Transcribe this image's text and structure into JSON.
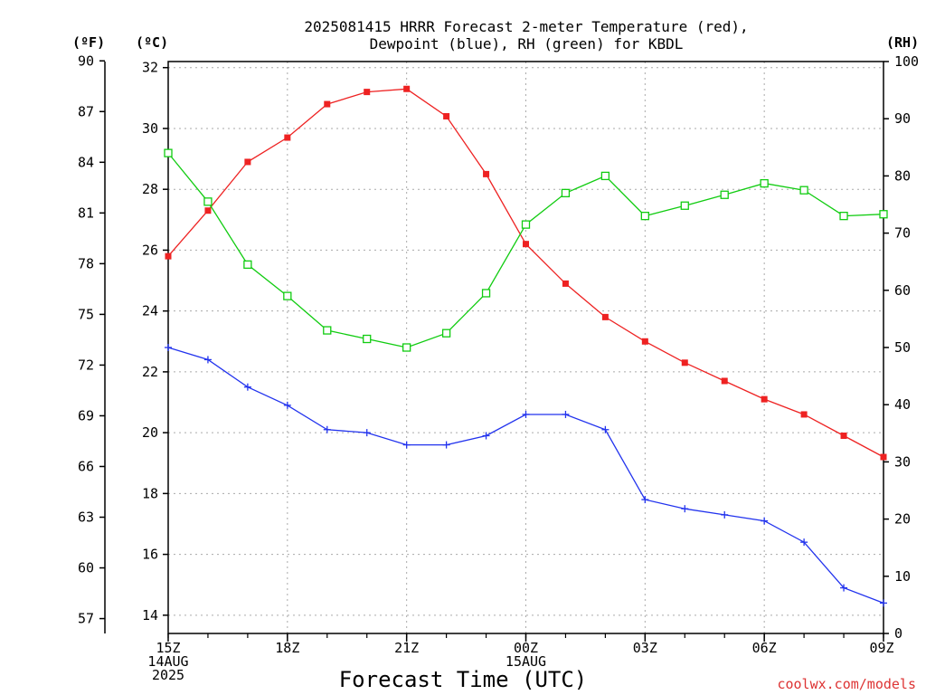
{
  "chart_data": {
    "type": "line",
    "title": [
      "2025081415 HRRR Forecast 2-meter Temperature (red),",
      "Dewpoint (blue), RH (green) for KBDL"
    ],
    "xlabel": "Forecast Time (UTC)",
    "credit": "coolwx.com/models",
    "colors": {
      "temperature": "#ee2222",
      "dewpoint": "#2233ee",
      "rh": "#11cc11",
      "grid": "#aaaaaa"
    },
    "x_hours_from_start": [
      0,
      1,
      2,
      3,
      4,
      5,
      6,
      7,
      8,
      9,
      10,
      11,
      12,
      13,
      14,
      15,
      16,
      17,
      18
    ],
    "x_tick_labels": [
      {
        "h": 0,
        "lines": [
          "15Z",
          "14AUG",
          "2025"
        ]
      },
      {
        "h": 3,
        "lines": [
          "18Z"
        ]
      },
      {
        "h": 6,
        "lines": [
          "21Z"
        ]
      },
      {
        "h": 9,
        "lines": [
          "00Z",
          "15AUG"
        ]
      },
      {
        "h": 12,
        "lines": [
          "03Z"
        ]
      },
      {
        "h": 15,
        "lines": [
          "06Z"
        ]
      },
      {
        "h": 18,
        "lines": [
          "09Z"
        ]
      }
    ],
    "y_left_c": {
      "label": "(ºC)",
      "ticks": [
        "14",
        "16",
        "18",
        "20",
        "22",
        "24",
        "26",
        "28",
        "30",
        "32"
      ],
      "range": [
        13.4,
        32.2
      ]
    },
    "y_left_f": {
      "label": "(ºF)",
      "ticks": [
        "57",
        "60",
        "63",
        "66",
        "69",
        "72",
        "75",
        "78",
        "81",
        "84",
        "87",
        "90"
      ]
    },
    "y_right_rh": {
      "label": "(RH)",
      "ticks": [
        "0",
        "10",
        "20",
        "30",
        "40",
        "50",
        "60",
        "70",
        "80",
        "90",
        "100"
      ],
      "range": [
        0,
        100
      ]
    },
    "series": [
      {
        "name": "Temperature",
        "axis": "C",
        "marker": "filled-square",
        "values": [
          25.8,
          27.3,
          28.9,
          29.7,
          30.8,
          31.2,
          31.3,
          30.4,
          28.5,
          26.2,
          24.9,
          23.8,
          23.0,
          22.3,
          21.7,
          21.1,
          20.6,
          19.9,
          19.2
        ]
      },
      {
        "name": "Dewpoint",
        "axis": "C",
        "marker": "plus",
        "values": [
          22.8,
          22.4,
          21.5,
          20.9,
          20.1,
          20.0,
          19.6,
          19.6,
          19.9,
          20.6,
          20.6,
          20.1,
          17.8,
          17.5,
          17.3,
          17.1,
          16.4,
          14.9,
          14.4
        ]
      },
      {
        "name": "RH",
        "axis": "RH",
        "marker": "open-square",
        "values": [
          84,
          75.5,
          64.5,
          59,
          53,
          51.5,
          50,
          52.5,
          59.5,
          71.5,
          77,
          80,
          73,
          74.8,
          76.7,
          78.7,
          77.5,
          73,
          73.3
        ]
      }
    ]
  }
}
